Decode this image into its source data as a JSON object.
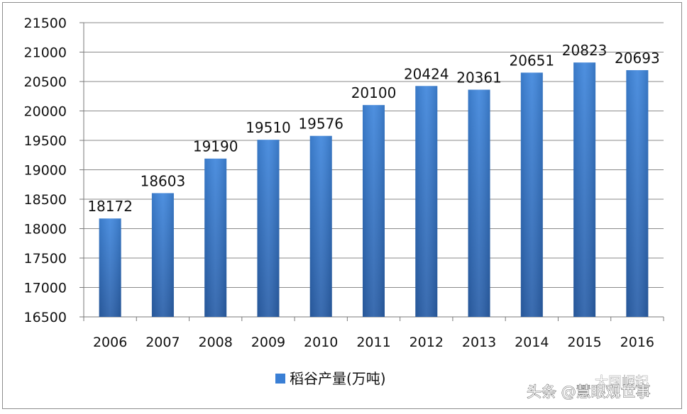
{
  "chart_data": {
    "type": "bar",
    "categories": [
      "2006",
      "2007",
      "2008",
      "2009",
      "2010",
      "2011",
      "2012",
      "2013",
      "2014",
      "2015",
      "2016"
    ],
    "series": [
      {
        "name": "稻谷产量(万吨)",
        "values": [
          18172,
          18603,
          19190,
          19510,
          19576,
          20100,
          20424,
          20361,
          20651,
          20823,
          20693
        ],
        "color": "#3a7fd5"
      }
    ],
    "data_labels": [
      "18172",
      "18603",
      "19190",
      "19510",
      "19576",
      "20100",
      "20424",
      "20361",
      "20651",
      "20823",
      "20693"
    ],
    "y_ticks": [
      16500,
      17000,
      17500,
      18000,
      18500,
      19000,
      19500,
      20000,
      20500,
      21000,
      21500
    ],
    "ylim": [
      16500,
      21500
    ],
    "grid": true,
    "legend_position": "bottom"
  },
  "watermark": {
    "line1": "大国崛起",
    "line2": "头条 @慧眼观世事"
  }
}
